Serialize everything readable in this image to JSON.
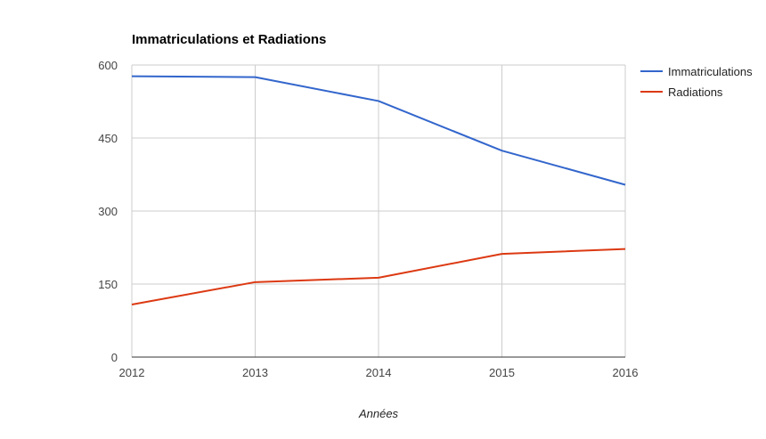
{
  "chart_data": {
    "type": "line",
    "title": "Immatriculations et Radiations",
    "xlabel": "Années",
    "ylabel": "",
    "categories": [
      "2012",
      "2013",
      "2014",
      "2015",
      "2016"
    ],
    "y_ticks": [
      "0",
      "150",
      "300",
      "450",
      "600"
    ],
    "ylim": [
      0,
      600
    ],
    "grid": true,
    "legend_position": "right",
    "series": [
      {
        "name": "Immatriculations",
        "color": "#3366cc",
        "values": [
          577,
          575,
          526,
          424,
          354
        ]
      },
      {
        "name": "Radiations",
        "color": "#dc3912",
        "values": [
          108,
          154,
          163,
          212,
          222
        ]
      }
    ]
  }
}
